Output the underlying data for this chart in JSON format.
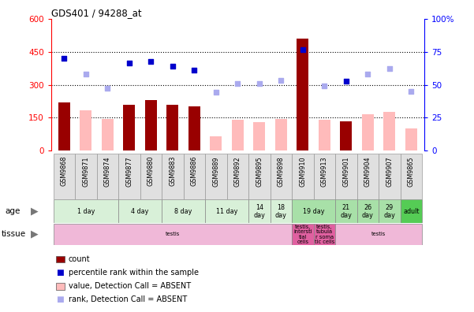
{
  "title": "GDS401 / 94288_at",
  "samples": [
    "GSM9868",
    "GSM9871",
    "GSM9874",
    "GSM9877",
    "GSM9880",
    "GSM9883",
    "GSM9886",
    "GSM9889",
    "GSM9892",
    "GSM9895",
    "GSM9898",
    "GSM9910",
    "GSM9913",
    "GSM9901",
    "GSM9904",
    "GSM9907",
    "GSM9865"
  ],
  "count_values": [
    220,
    0,
    0,
    210,
    230,
    210,
    200,
    0,
    0,
    0,
    0,
    510,
    0,
    135,
    0,
    0,
    0
  ],
  "absent_bar_values": [
    0,
    185,
    145,
    0,
    0,
    0,
    0,
    65,
    140,
    130,
    145,
    0,
    140,
    0,
    165,
    175,
    100
  ],
  "rank_present": [
    420,
    0,
    0,
    400,
    405,
    385,
    365,
    0,
    0,
    0,
    0,
    460,
    0,
    315,
    0,
    0,
    0
  ],
  "rank_absent": [
    0,
    350,
    285,
    0,
    0,
    0,
    0,
    265,
    305,
    305,
    320,
    0,
    295,
    0,
    350,
    375,
    270
  ],
  "ylim_left": [
    0,
    600
  ],
  "ylim_right": [
    0,
    100
  ],
  "yticks_left": [
    0,
    150,
    300,
    450,
    600
  ],
  "yticks_right": [
    0,
    25,
    50,
    75,
    100
  ],
  "age_groups": [
    {
      "label": "1 day",
      "start": 0,
      "end": 2,
      "color": "#d8f0d8"
    },
    {
      "label": "4 day",
      "start": 3,
      "end": 4,
      "color": "#d8f0d8"
    },
    {
      "label": "8 day",
      "start": 5,
      "end": 6,
      "color": "#d8f0d8"
    },
    {
      "label": "11 day",
      "start": 7,
      "end": 8,
      "color": "#d8f0d8"
    },
    {
      "label": "14\nday",
      "start": 9,
      "end": 9,
      "color": "#d8f0d8"
    },
    {
      "label": "18\nday",
      "start": 10,
      "end": 10,
      "color": "#d8f0d8"
    },
    {
      "label": "19 day",
      "start": 11,
      "end": 12,
      "color": "#a8e0a8"
    },
    {
      "label": "21\nday",
      "start": 13,
      "end": 13,
      "color": "#a8e0a8"
    },
    {
      "label": "26\nday",
      "start": 14,
      "end": 14,
      "color": "#a8e0a8"
    },
    {
      "label": "29\nday",
      "start": 15,
      "end": 15,
      "color": "#a8e0a8"
    },
    {
      "label": "adult",
      "start": 16,
      "end": 16,
      "color": "#55cc55"
    }
  ],
  "tissue_groups": [
    {
      "label": "testis",
      "start": 0,
      "end": 10,
      "color": "#f0b8d8"
    },
    {
      "label": "testis,\nintersti\ntial\ncells",
      "start": 11,
      "end": 11,
      "color": "#e060a0"
    },
    {
      "label": "testis,\ntubula\nr soma\ntic cells",
      "start": 12,
      "end": 12,
      "color": "#e060a0"
    },
    {
      "label": "testis",
      "start": 13,
      "end": 16,
      "color": "#f0b8d8"
    }
  ],
  "bar_color_present": "#990000",
  "bar_color_absent": "#ffbbbb",
  "dot_color_present": "#0000cc",
  "dot_color_absent": "#aaaaee",
  "legend_items": [
    {
      "label": "count",
      "color": "#990000",
      "type": "rect"
    },
    {
      "label": "percentile rank within the sample",
      "color": "#0000cc",
      "type": "sq"
    },
    {
      "label": "value, Detection Call = ABSENT",
      "color": "#ffbbbb",
      "type": "rect"
    },
    {
      "label": "rank, Detection Call = ABSENT",
      "color": "#aaaaee",
      "type": "sq"
    }
  ]
}
